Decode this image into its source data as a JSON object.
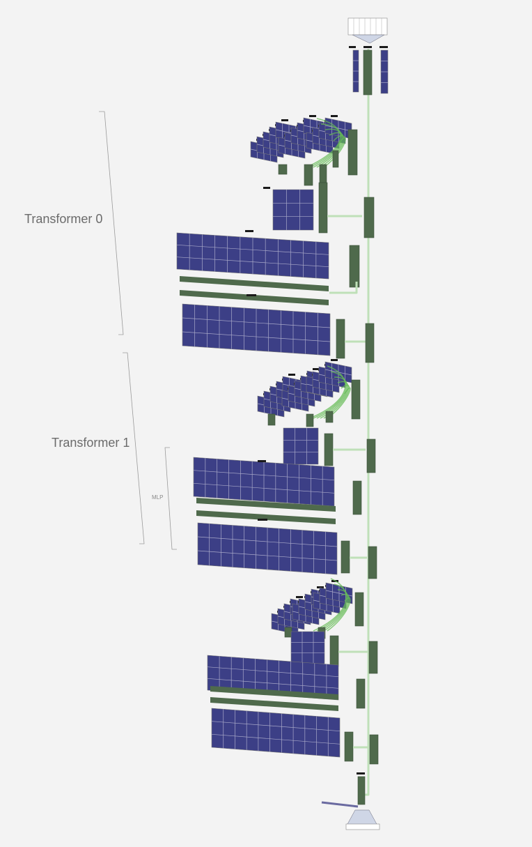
{
  "labels": {
    "transformer_0": "Transformer 0",
    "transformer_1": "Transformer 1",
    "mlp": "MLP"
  },
  "colors": {
    "background": "#f3f3f3",
    "weight_blue": "#3c3f86",
    "activation_green": "#4f6a4c",
    "residual_line": "#bfe0b8",
    "attention_line": "#66bb55",
    "grid_line": "#a9a9c9",
    "bracket": "#9a9a9a",
    "label_tag": "#1a1a1a"
  },
  "icons": [
    "token-embedding-fan-icon",
    "output-softmax-fan-icon"
  ]
}
